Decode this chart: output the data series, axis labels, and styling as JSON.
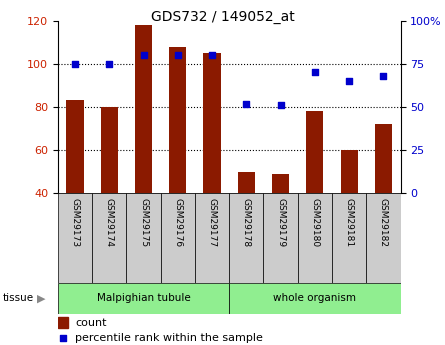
{
  "title": "GDS732 / 149052_at",
  "categories": [
    "GSM29173",
    "GSM29174",
    "GSM29175",
    "GSM29176",
    "GSM29177",
    "GSM29178",
    "GSM29179",
    "GSM29180",
    "GSM29181",
    "GSM29182"
  ],
  "bar_values": [
    83,
    80,
    118,
    108,
    105,
    50,
    49,
    78,
    60,
    72
  ],
  "percentile_values": [
    75,
    75,
    80,
    80,
    80,
    52,
    51,
    70,
    65,
    68
  ],
  "bar_color": "#8B1A00",
  "dot_color": "#0000CC",
  "bar_bottom": 40,
  "left_ylim": [
    40,
    120
  ],
  "right_ylim": [
    0,
    100
  ],
  "left_yticks": [
    40,
    60,
    80,
    100,
    120
  ],
  "right_yticks": [
    0,
    25,
    50,
    75,
    100
  ],
  "right_yticklabels": [
    "0",
    "25",
    "50",
    "75",
    "100%"
  ],
  "grid_lines": [
    60,
    80,
    100
  ],
  "tissue_groups": [
    {
      "label": "Malpighian tubule",
      "start": 0,
      "end": 5,
      "color": "#90EE90"
    },
    {
      "label": "whole organism",
      "start": 5,
      "end": 10,
      "color": "#90EE90"
    }
  ],
  "bg_tick_color": "#CCCCCC",
  "plot_bg_color": "#FFFFFF",
  "tick_label_color_left": "#CC2200",
  "tick_label_color_right": "#0000CC",
  "title_fontsize": 10,
  "axis_fontsize": 8,
  "legend_fontsize": 8
}
